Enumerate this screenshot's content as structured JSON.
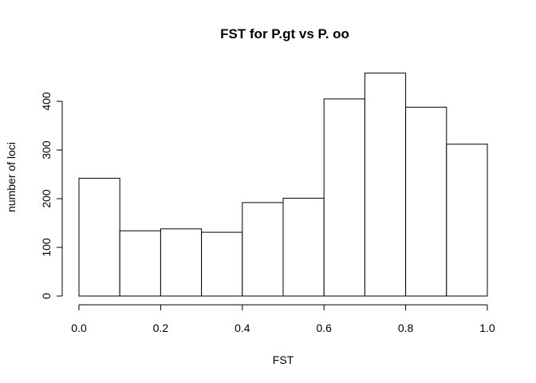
{
  "chart_data": {
    "type": "bar",
    "title": "FST for P.gt vs P. oo",
    "xlabel": "FST",
    "ylabel": "number of loci",
    "bins": [
      [
        0.0,
        0.1
      ],
      [
        0.1,
        0.2
      ],
      [
        0.2,
        0.3
      ],
      [
        0.3,
        0.4
      ],
      [
        0.4,
        0.5
      ],
      [
        0.5,
        0.6
      ],
      [
        0.6,
        0.7
      ],
      [
        0.7,
        0.8
      ],
      [
        0.8,
        0.9
      ],
      [
        0.9,
        1.0
      ]
    ],
    "values": [
      242,
      134,
      138,
      131,
      192,
      201,
      405,
      458,
      388,
      312
    ],
    "xlim": [
      0.0,
      1.0
    ],
    "ylim": [
      0,
      460
    ],
    "x_ticks": [
      0.0,
      0.2,
      0.4,
      0.6,
      0.8,
      1.0
    ],
    "x_tick_labels": [
      "0.0",
      "0.2",
      "0.4",
      "0.6",
      "0.8",
      "1.0"
    ],
    "y_ticks": [
      0,
      100,
      200,
      300,
      400
    ],
    "y_tick_labels": [
      "0",
      "100",
      "200",
      "300",
      "400"
    ],
    "grid": false,
    "colors": {
      "bar_fill": "#ffffff",
      "bar_stroke": "#000000",
      "background": "#ffffff"
    }
  }
}
